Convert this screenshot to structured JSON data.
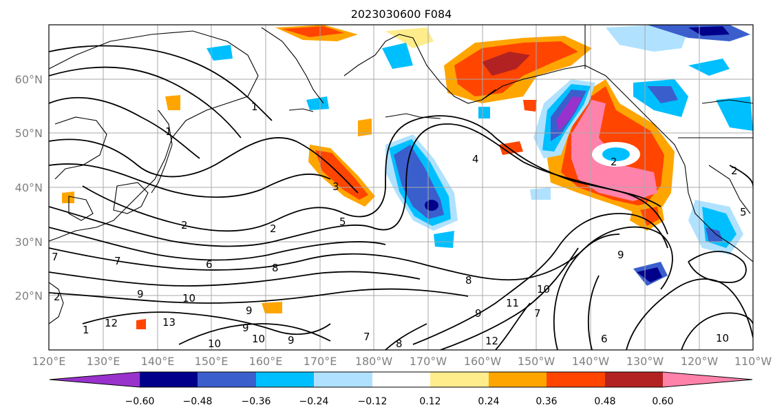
{
  "title": "2023030600 F084",
  "map": {
    "lat_labels": [
      "20°N",
      "30°N",
      "40°N",
      "50°N",
      "60°N"
    ],
    "lon_labels": [
      "120°E",
      "130°E",
      "140°E",
      "150°E",
      "160°E",
      "170°E",
      "180°W",
      "170°W",
      "160°W",
      "150°W",
      "140°W",
      "130°W",
      "120°W",
      "110°W"
    ],
    "lat_range": [
      10,
      70
    ],
    "lon_range": [
      120,
      250
    ],
    "grid": true
  },
  "colorbar": {
    "ticks": [
      "−0.60",
      "−0.48",
      "−0.36",
      "−0.24",
      "−0.12",
      "0.12",
      "0.24",
      "0.36",
      "0.48",
      "0.60"
    ],
    "colors": [
      "#9932cc",
      "#00008b",
      "#3a5fcd",
      "#00bfff",
      "#b0e2ff",
      "#ffffff",
      "#ffec8b",
      "#ffa500",
      "#ff4500",
      "#b22222",
      "#ff82ab"
    ]
  },
  "contour_labels": [
    "1",
    "1",
    "2",
    "3",
    "4",
    "5",
    "2",
    "2",
    "2",
    "5",
    "6",
    "7",
    "8",
    "9",
    "10",
    "9",
    "12",
    "13",
    "10",
    "9",
    "10",
    "9",
    "7",
    "8",
    "9",
    "10",
    "11",
    "12",
    "6",
    "7",
    "8",
    "10",
    "9",
    "1",
    "2",
    "7"
  ]
}
